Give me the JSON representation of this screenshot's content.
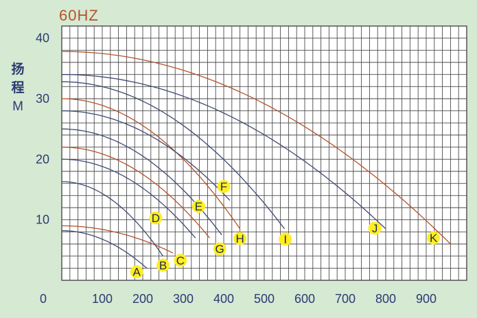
{
  "chart_data": {
    "type": "line",
    "title": "60HZ",
    "xlabel": "",
    "ylabel": "扬程 M",
    "ylabel_lines": [
      "扬",
      "程",
      "M"
    ],
    "xlim": [
      0,
      1000
    ],
    "ylim": [
      0,
      42
    ],
    "xticks": [
      {
        "v": 0,
        "label": "0"
      },
      {
        "v": 100,
        "label": "100"
      },
      {
        "v": 200,
        "label": "200"
      },
      {
        "v": 300,
        "label": "300"
      },
      {
        "v": 400,
        "label": "400"
      },
      {
        "v": 500,
        "label": "500"
      },
      {
        "v": 600,
        "label": "600"
      },
      {
        "v": 700,
        "label": "700"
      },
      {
        "v": 800,
        "label": "800"
      },
      {
        "v": 900,
        "label": "900"
      }
    ],
    "yticks": [
      {
        "v": 10,
        "label": "10"
      },
      {
        "v": 20,
        "label": "20"
      },
      {
        "v": 30,
        "label": "30"
      },
      {
        "v": 40,
        "label": "40"
      }
    ],
    "grid": true,
    "colors": {
      "blue": "#3d4a73",
      "red": "#b5532a",
      "marker": "#ffee22",
      "grid": "#4a4a4a",
      "title": "#b5532a",
      "text": "#2c3a72"
    },
    "series": [
      {
        "color": "blue",
        "q_max": 210,
        "h0": 8.2,
        "h_end": 2.0
      },
      {
        "color": "red",
        "q_max": 275,
        "h0": 9.0,
        "h_end": 4.5
      },
      {
        "color": "blue",
        "q_max": 250,
        "h0": 16.3,
        "h_end": 4.0
      },
      {
        "color": "blue",
        "q_max": 330,
        "h0": 20.0,
        "h_end": 7.0
      },
      {
        "color": "red",
        "q_max": 365,
        "h0": 22.0,
        "h_end": 7.0
      },
      {
        "color": "blue",
        "q_max": 395,
        "h0": 25.0,
        "h_end": 7.5
      },
      {
        "color": "red",
        "q_max": 440,
        "h0": 30.0,
        "h_end": 8.5
      },
      {
        "color": "blue",
        "q_max": 415,
        "h0": 28.0,
        "h_end": 13.2
      },
      {
        "color": "blue",
        "q_max": 550,
        "h0": 32.8,
        "h_end": 8.5
      },
      {
        "color": "blue",
        "q_max": 800,
        "h0": 34.0,
        "h_end": 8.5
      },
      {
        "color": "red",
        "q_max": 960,
        "h0": 37.8,
        "h_end": 6.0
      }
    ],
    "markers": [
      {
        "label": "A",
        "x": 185,
        "y": 1.4
      },
      {
        "label": "B",
        "x": 250,
        "y": 2.5
      },
      {
        "label": "C",
        "x": 293,
        "y": 3.3
      },
      {
        "label": "D",
        "x": 232,
        "y": 10.3
      },
      {
        "label": "E",
        "x": 338,
        "y": 12.2
      },
      {
        "label": "F",
        "x": 400,
        "y": 15.5
      },
      {
        "label": "G",
        "x": 390,
        "y": 5.2
      },
      {
        "label": "H",
        "x": 440,
        "y": 6.9
      },
      {
        "label": "I",
        "x": 552,
        "y": 6.8
      },
      {
        "label": "J",
        "x": 773,
        "y": 8.6
      },
      {
        "label": "K",
        "x": 918,
        "y": 7.0
      }
    ]
  }
}
